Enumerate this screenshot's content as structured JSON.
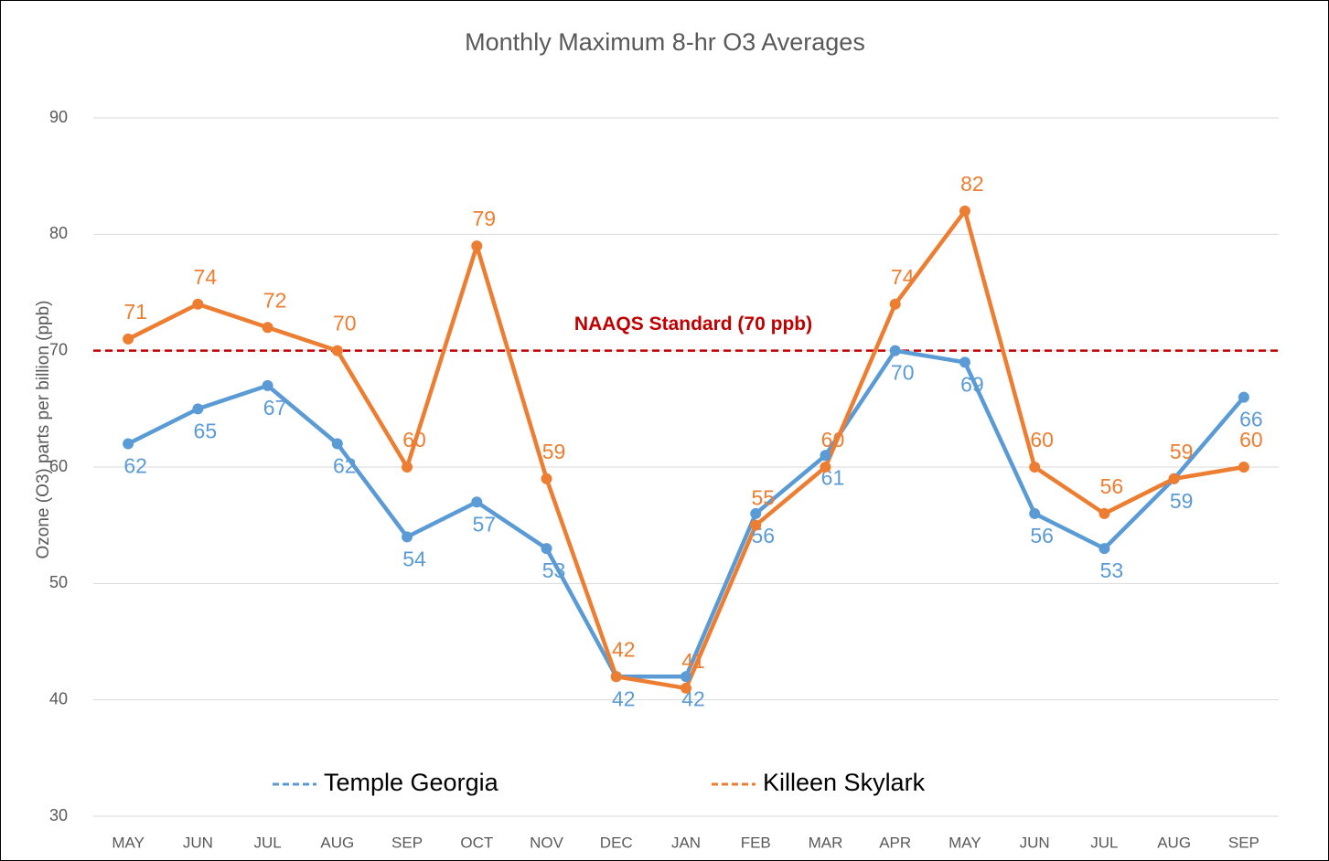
{
  "chart_data": {
    "type": "line",
    "title": "Monthly Maximum 8-hr O3 Averages",
    "y_label": "Ozone (O3) parts per billion (ppb)",
    "categories": [
      "MAY",
      "JUN",
      "JUL",
      "AUG",
      "SEP",
      "OCT",
      "NOV",
      "DEC",
      "JAN",
      "FEB",
      "MAR",
      "APR",
      "MAY",
      "JUN",
      "JUL",
      "AUG",
      "SEP"
    ],
    "series": [
      {
        "name": "Temple Georgia",
        "color": "#5b9bd5",
        "values": [
          62,
          65,
          67,
          62,
          54,
          57,
          53,
          42,
          42,
          56,
          61,
          70,
          69,
          56,
          53,
          59,
          66
        ]
      },
      {
        "name": "Killeen Skylark",
        "color": "#ed7d31",
        "values": [
          71,
          74,
          72,
          70,
          60,
          79,
          59,
          42,
          41,
          55,
          60,
          74,
          82,
          60,
          56,
          59,
          60
        ]
      }
    ],
    "reference_line": {
      "value": 70,
      "label": "NAAQS Standard (70 ppb)",
      "color": "#c00000"
    },
    "ylim": [
      30,
      90
    ],
    "yticks": [
      30,
      40,
      50,
      60,
      70,
      80,
      90
    ],
    "grid": true,
    "legend": "bottom"
  }
}
